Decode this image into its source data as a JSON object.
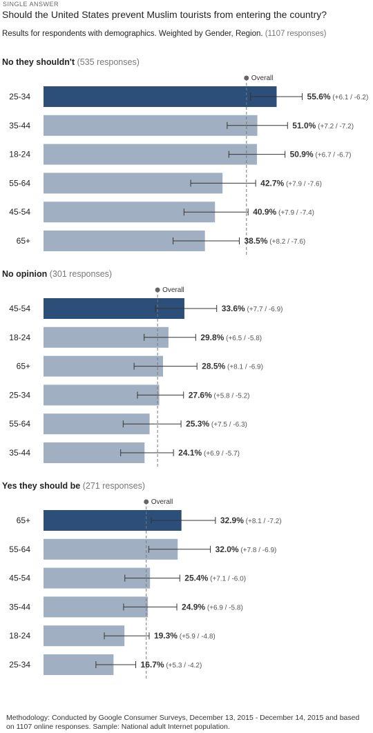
{
  "header": {
    "question_type": "SINGLE ANSWER",
    "title": "Should the United States prevent Muslim tourists from entering the country?",
    "subtitle_main": "Results for respondents with demographics. Weighted by Gender, Region.",
    "subtitle_count": "(1107 responses)"
  },
  "overall_label": "Overall",
  "colors": {
    "highlight_bar": "#2b4f78",
    "bar": "#a0b0c2",
    "error_bar": "#333333",
    "overall_line": "#777777"
  },
  "chart_data": [
    {
      "type": "bar",
      "orientation": "horizontal",
      "title": "No they shouldn't",
      "responses": "(535 responses)",
      "categories": [
        "25-34",
        "35-44",
        "18-24",
        "55-64",
        "45-54",
        "65+"
      ],
      "values": [
        55.6,
        51.0,
        50.9,
        42.7,
        40.9,
        38.5
      ],
      "value_labels": [
        "55.6%",
        "51.0%",
        "50.9%",
        "42.7%",
        "40.9%",
        "38.5%"
      ],
      "error_plus": [
        6.1,
        7.2,
        6.7,
        7.9,
        7.9,
        8.2
      ],
      "error_minus": [
        6.2,
        7.2,
        6.7,
        7.6,
        7.4,
        7.6
      ],
      "error_labels": [
        "(+6.1 / -6.2)",
        "(+7.2 / -7.2)",
        "(+6.7 / -6.7)",
        "(+7.9 / -7.6)",
        "(+7.9 / -7.4)",
        "(+8.2 / -7.6)"
      ],
      "overall": 48.4,
      "highlighted_index": 0,
      "unit": "%"
    },
    {
      "type": "bar",
      "orientation": "horizontal",
      "title": "No opinion",
      "responses": "(301 responses)",
      "categories": [
        "45-54",
        "18-24",
        "65+",
        "25-34",
        "55-64",
        "35-44"
      ],
      "values": [
        33.6,
        29.8,
        28.5,
        27.6,
        25.3,
        24.1
      ],
      "value_labels": [
        "33.6%",
        "29.8%",
        "28.5%",
        "27.6%",
        "25.3%",
        "24.1%"
      ],
      "error_plus": [
        7.7,
        6.5,
        8.1,
        5.8,
        7.5,
        6.9
      ],
      "error_minus": [
        6.9,
        5.8,
        6.9,
        5.2,
        6.3,
        5.7
      ],
      "error_labels": [
        "(+7.7 / -6.9)",
        "(+6.5 / -5.8)",
        "(+8.1 / -6.9)",
        "(+5.8 / -5.2)",
        "(+7.5 / -6.3)",
        "(+6.9 / -5.7)"
      ],
      "overall": 27.2,
      "highlighted_index": 0,
      "unit": "%"
    },
    {
      "type": "bar",
      "orientation": "horizontal",
      "title": "Yes they should be",
      "responses": "(271 responses)",
      "categories": [
        "65+",
        "55-64",
        "45-54",
        "35-44",
        "18-24",
        "25-34"
      ],
      "values": [
        32.9,
        32.0,
        25.4,
        24.9,
        19.3,
        16.7
      ],
      "value_labels": [
        "32.9%",
        "32.0%",
        "25.4%",
        "24.9%",
        "19.3%",
        "16.7%"
      ],
      "error_plus": [
        8.1,
        7.8,
        7.1,
        6.9,
        5.9,
        5.3
      ],
      "error_minus": [
        7.2,
        6.9,
        6.0,
        5.8,
        4.8,
        4.2
      ],
      "error_labels": [
        "(+8.1 / -7.2)",
        "(+7.8 / -6.9)",
        "(+7.1 / -6.0)",
        "(+6.9 / -5.8)",
        "(+5.9 / -4.8)",
        "(+5.3 / -4.2)"
      ],
      "overall": 24.5,
      "highlighted_index": 0,
      "unit": "%"
    }
  ],
  "methodology": "Methodology: Conducted by Google Consumer Surveys, December 13, 2015 - December 14, 2015 and based on 1107 online responses. Sample: National adult Internet population."
}
